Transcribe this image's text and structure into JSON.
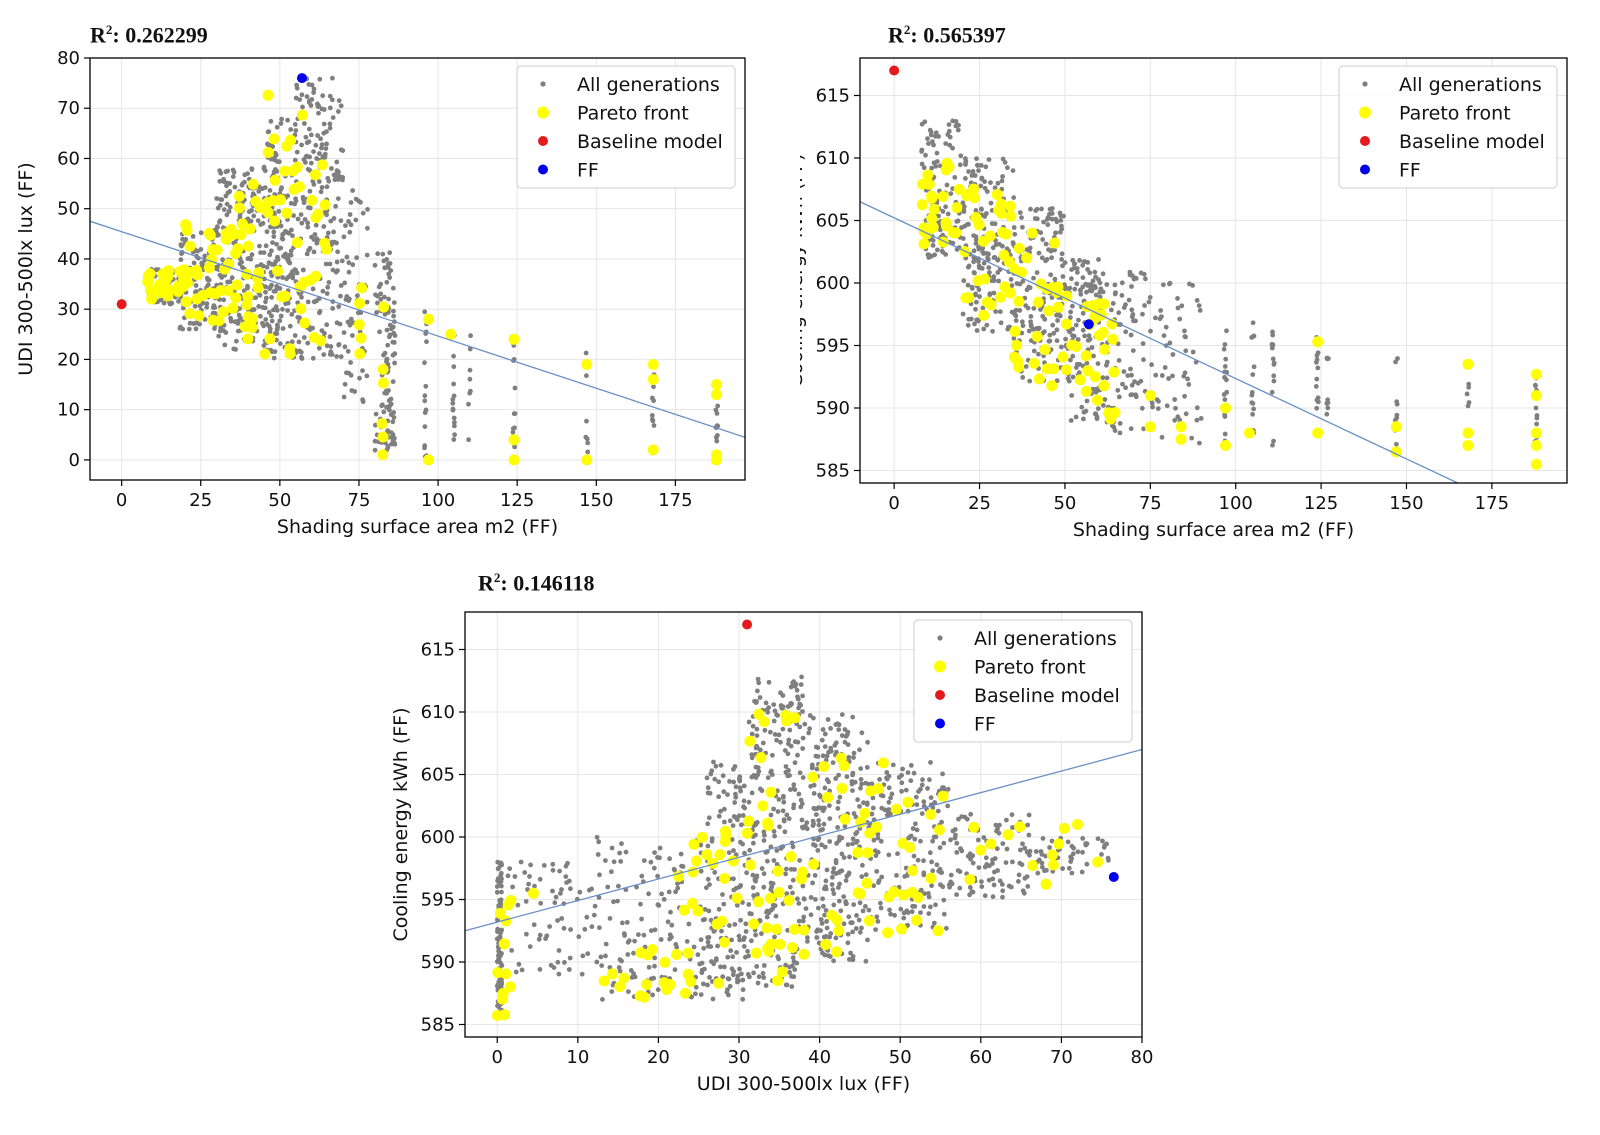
{
  "charts": [
    {
      "r2_label": "R",
      "r2_sup": "2",
      "r2_value": ": 0.262299",
      "type": "scatter",
      "xlabel": "Shading surface area m2 (FF)",
      "ylabel": "UDI 300-500lx lux (FF)",
      "xlim": [
        -10,
        197
      ],
      "ylim": [
        -4,
        80
      ],
      "xticks": [
        0,
        25,
        50,
        75,
        100,
        125,
        150,
        175
      ],
      "yticks": [
        0,
        10,
        20,
        30,
        40,
        50,
        60,
        70,
        80
      ],
      "grid": true,
      "legend_position": "top-right",
      "trendline": {
        "x0": -10,
        "y0": 47.5,
        "x1": 197,
        "y1": 4.5
      },
      "cloud": [
        {
          "x": [
            8,
            18
          ],
          "y": [
            31,
            38
          ],
          "n": 70
        },
        {
          "x": [
            18,
            30
          ],
          "y": [
            26,
            46
          ],
          "n": 120
        },
        {
          "x": [
            30,
            45
          ],
          "y": [
            22,
            58
          ],
          "n": 220
        },
        {
          "x": [
            45,
            55
          ],
          "y": [
            20,
            68
          ],
          "n": 200
        },
        {
          "x": [
            55,
            70
          ],
          "y": [
            20,
            76
          ],
          "n": 220
        },
        {
          "x": [
            70,
            78
          ],
          "y": [
            10,
            56
          ],
          "n": 60
        },
        {
          "x": [
            80,
            86
          ],
          "y": [
            0,
            42
          ],
          "n": 70
        }
      ],
      "cols": [
        {
          "x": 84,
          "y": [
            0,
            42
          ],
          "n": 30
        },
        {
          "x": 86,
          "y": [
            0,
            35
          ],
          "n": 20
        },
        {
          "x": 96,
          "y": [
            0,
            33
          ],
          "n": 16
        },
        {
          "x": 105,
          "y": [
            0,
            26
          ],
          "n": 14
        },
        {
          "x": 110,
          "y": [
            0,
            25
          ],
          "n": 8
        },
        {
          "x": 124,
          "y": [
            0,
            25
          ],
          "n": 14
        },
        {
          "x": 147,
          "y": [
            0,
            22
          ],
          "n": 8
        },
        {
          "x": 168,
          "y": [
            1,
            20
          ],
          "n": 10
        },
        {
          "x": 188,
          "y": [
            0,
            16
          ],
          "n": 12
        }
      ],
      "pareto": [
        {
          "x": [
            8,
            20
          ],
          "y": [
            32,
            38
          ],
          "n": 24
        },
        {
          "x": [
            20,
            35
          ],
          "y": [
            27,
            47
          ],
          "n": 30
        },
        {
          "x": [
            35,
            45
          ],
          "y": [
            24,
            57
          ],
          "n": 26
        },
        {
          "x": [
            45,
            58
          ],
          "y": [
            21,
            74
          ],
          "n": 30
        },
        {
          "x": [
            58,
            66
          ],
          "y": [
            21,
            67
          ],
          "n": 12
        },
        {
          "x": [
            75,
            76
          ],
          "y": [
            16,
            54
          ],
          "n": 5
        },
        {
          "x": [
            82,
            83
          ],
          "y": [
            1,
            36
          ],
          "n": 6
        }
      ],
      "pareto_points": [
        {
          "x": 97,
          "y": 28
        },
        {
          "x": 97,
          "y": 0
        },
        {
          "x": 104,
          "y": 25
        },
        {
          "x": 124,
          "y": 24
        },
        {
          "x": 124,
          "y": 4
        },
        {
          "x": 124,
          "y": 0
        },
        {
          "x": 147,
          "y": 19
        },
        {
          "x": 147,
          "y": 0
        },
        {
          "x": 168,
          "y": 19
        },
        {
          "x": 168,
          "y": 16
        },
        {
          "x": 168,
          "y": 2
        },
        {
          "x": 188,
          "y": 15
        },
        {
          "x": 188,
          "y": 13
        },
        {
          "x": 188,
          "y": 1
        },
        {
          "x": 188,
          "y": 0
        }
      ],
      "baseline": {
        "x": 0,
        "y": 31
      },
      "ff": {
        "x": 57,
        "y": 76
      }
    },
    {
      "r2_label": "R",
      "r2_sup": "2",
      "r2_value": ": 0.565397",
      "type": "scatter",
      "xlabel": "Shading surface area m2 (FF)",
      "ylabel": "Cooling energy kWh (FF)",
      "xlim": [
        -10,
        197
      ],
      "ylim": [
        584,
        618
      ],
      "xticks": [
        0,
        25,
        50,
        75,
        100,
        125,
        150,
        175
      ],
      "yticks": [
        585,
        590,
        595,
        600,
        605,
        610,
        615
      ],
      "grid": true,
      "legend_position": "top-right",
      "trendline": {
        "x0": -10,
        "y0": 606.5,
        "x1": 165,
        "y1": 584
      },
      "cloud": [
        {
          "x": [
            8,
            20
          ],
          "y": [
            602,
            613
          ],
          "n": 120
        },
        {
          "x": [
            20,
            35
          ],
          "y": [
            596,
            610
          ],
          "n": 180
        },
        {
          "x": [
            35,
            50
          ],
          "y": [
            592,
            606
          ],
          "n": 180
        },
        {
          "x": [
            50,
            62
          ],
          "y": [
            589,
            602
          ],
          "n": 140
        },
        {
          "x": [
            62,
            75
          ],
          "y": [
            588,
            601
          ],
          "n": 80
        },
        {
          "x": [
            75,
            90
          ],
          "y": [
            587,
            600
          ],
          "n": 60
        }
      ],
      "cols": [
        {
          "x": 97,
          "y": [
            587,
            598
          ],
          "n": 18
        },
        {
          "x": 105,
          "y": [
            588,
            597
          ],
          "n": 14
        },
        {
          "x": 111,
          "y": [
            587,
            597
          ],
          "n": 14
        },
        {
          "x": 124,
          "y": [
            588,
            596
          ],
          "n": 14
        },
        {
          "x": 127,
          "y": [
            589,
            595
          ],
          "n": 8
        },
        {
          "x": 147,
          "y": [
            587,
            594
          ],
          "n": 10
        },
        {
          "x": 168,
          "y": [
            587,
            594
          ],
          "n": 10
        },
        {
          "x": 188,
          "y": [
            586,
            593
          ],
          "n": 14
        }
      ],
      "pareto": [
        {
          "x": [
            8,
            20
          ],
          "y": [
            603,
            610
          ],
          "n": 24
        },
        {
          "x": [
            20,
            35
          ],
          "y": [
            597,
            608
          ],
          "n": 28
        },
        {
          "x": [
            35,
            50
          ],
          "y": [
            591,
            604
          ],
          "n": 28
        },
        {
          "x": [
            50,
            62
          ],
          "y": [
            589,
            599
          ],
          "n": 24
        },
        {
          "x": [
            62,
            66
          ],
          "y": [
            589,
            597
          ],
          "n": 6
        }
      ],
      "pareto_points": [
        {
          "x": 75,
          "y": 591
        },
        {
          "x": 75,
          "y": 588.5
        },
        {
          "x": 84,
          "y": 588.5
        },
        {
          "x": 84,
          "y": 587.5
        },
        {
          "x": 97,
          "y": 590
        },
        {
          "x": 97,
          "y": 587
        },
        {
          "x": 104,
          "y": 588
        },
        {
          "x": 124,
          "y": 595.3
        },
        {
          "x": 124,
          "y": 588
        },
        {
          "x": 147,
          "y": 588.5
        },
        {
          "x": 147,
          "y": 586.5
        },
        {
          "x": 168,
          "y": 593.5
        },
        {
          "x": 168,
          "y": 588
        },
        {
          "x": 168,
          "y": 587
        },
        {
          "x": 188,
          "y": 592.7
        },
        {
          "x": 188,
          "y": 591
        },
        {
          "x": 188,
          "y": 588
        },
        {
          "x": 188,
          "y": 587
        },
        {
          "x": 188,
          "y": 585.5
        }
      ],
      "baseline": {
        "x": 0,
        "y": 617
      },
      "ff": {
        "x": 57,
        "y": 596.7
      }
    },
    {
      "r2_label": "R",
      "r2_sup": "2",
      "r2_value": ": 0.146118",
      "type": "scatter",
      "xlabel": "UDI 300-500lx lux (FF)",
      "ylabel": "Cooling energy kWh (FF)",
      "xlim": [
        -4,
        80
      ],
      "ylim": [
        584,
        618
      ],
      "xticks": [
        0,
        10,
        20,
        30,
        40,
        50,
        60,
        70,
        80
      ],
      "yticks": [
        585,
        590,
        595,
        600,
        605,
        610,
        615
      ],
      "grid": true,
      "legend_position": "top-right",
      "trendline": {
        "x0": -4,
        "y0": 592.5,
        "x1": 80,
        "y1": 607
      },
      "cloud": [
        {
          "x": [
            0,
            0.6
          ],
          "y": [
            586,
            598
          ],
          "n": 90
        },
        {
          "x": [
            1,
            12
          ],
          "y": [
            589,
            598
          ],
          "n": 70
        },
        {
          "x": [
            12,
            26
          ],
          "y": [
            587,
            600
          ],
          "n": 150
        },
        {
          "x": [
            26,
            31
          ],
          "y": [
            587,
            606
          ],
          "n": 150
        },
        {
          "x": [
            31,
            38
          ],
          "y": [
            588,
            613
          ],
          "n": 280
        },
        {
          "x": [
            38,
            46
          ],
          "y": [
            590,
            610
          ],
          "n": 260
        },
        {
          "x": [
            46,
            56
          ],
          "y": [
            592,
            606
          ],
          "n": 180
        },
        {
          "x": [
            56,
            66
          ],
          "y": [
            595,
            602
          ],
          "n": 100
        },
        {
          "x": [
            66,
            76
          ],
          "y": [
            597,
            600
          ],
          "n": 50
        }
      ],
      "cols": [],
      "pareto": [
        {
          "x": [
            0,
            2
          ],
          "y": [
            585.5,
            595
          ],
          "n": 12
        },
        {
          "x": [
            13,
            22
          ],
          "y": [
            587,
            591
          ],
          "n": 14
        },
        {
          "x": [
            22,
            30
          ],
          "y": [
            587.5,
            601
          ],
          "n": 26
        },
        {
          "x": [
            31,
            38
          ],
          "y": [
            588,
            610
          ],
          "n": 34
        },
        {
          "x": [
            38,
            48
          ],
          "y": [
            590,
            607
          ],
          "n": 28
        },
        {
          "x": [
            48,
            57
          ],
          "y": [
            592,
            604
          ],
          "n": 18
        },
        {
          "x": [
            58,
            72
          ],
          "y": [
            596,
            601
          ],
          "n": 12
        }
      ],
      "pareto_points": [
        {
          "x": 74.5,
          "y": 598
        },
        {
          "x": 72,
          "y": 601
        },
        {
          "x": 4.5,
          "y": 595.5
        }
      ],
      "baseline": {
        "x": 31,
        "y": 617
      },
      "ff": {
        "x": 76.5,
        "y": 596.8
      }
    }
  ],
  "legend": {
    "items": [
      {
        "label": "All generations",
        "marker": "small",
        "color": "#7f7f7f"
      },
      {
        "label": "Pareto front",
        "marker": "large",
        "color": "#ffff00"
      },
      {
        "label": "Baseline model",
        "marker": "medium",
        "color": "#e41a1c"
      },
      {
        "label": "FF",
        "marker": "medium",
        "color": "#0000ee"
      }
    ]
  },
  "colors": {
    "all": "#7f7f7f",
    "pareto": "#ffff00",
    "baseline": "#e41a1c",
    "ff": "#0000ee",
    "trend": "#6a8fc6",
    "grid": "#e6e6e6"
  }
}
